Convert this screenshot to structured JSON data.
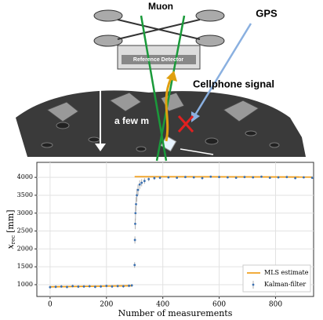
{
  "diagram": {
    "muon": "Muon",
    "gps": "GPS",
    "reference_detector": "Reference Detector",
    "cellphone_signal": "Cellphone signal",
    "depth": "a few m"
  },
  "chart_data": {
    "type": "scatter",
    "xlabel": "Number of measurements",
    "ylabel": [
      "x",
      "rec",
      "[mm]"
    ],
    "xlim": [
      -47,
      935
    ],
    "ylim": [
      670,
      4420
    ],
    "xticks": [
      0,
      200,
      400,
      600,
      800
    ],
    "yticks": [
      1000,
      1500,
      2000,
      2500,
      3000,
      3500,
      4000
    ],
    "grid": true,
    "legend": "lower right",
    "series": [
      {
        "name": "MLS estimate",
        "type": "line",
        "color": "#f0a020",
        "x": [
          0,
          290,
          295,
          300,
          930
        ],
        "values": [
          940,
          970,
          null,
          4020,
          4010
        ]
      },
      {
        "name": "Kalman-filter",
        "type": "errorbar",
        "color": "#3a6fb0",
        "error_color": "#b0b0b0",
        "x": [
          0,
          20,
          40,
          60,
          80,
          100,
          120,
          140,
          160,
          180,
          200,
          220,
          240,
          260,
          280,
          290,
          300,
          301,
          302,
          303,
          305,
          308,
          312,
          318,
          325,
          335,
          350,
          370,
          390,
          420,
          450,
          480,
          510,
          540,
          570,
          600,
          630,
          660,
          690,
          720,
          750,
          780,
          810,
          840,
          870,
          900,
          930
        ],
        "values": [
          930,
          940,
          950,
          935,
          960,
          945,
          950,
          955,
          940,
          950,
          965,
          950,
          960,
          955,
          970,
          980,
          1550,
          2250,
          2700,
          3000,
          3250,
          3500,
          3650,
          3800,
          3850,
          3900,
          3950,
          3980,
          3990,
          4000,
          3990,
          4010,
          4000,
          3980,
          4020,
          4010,
          4000,
          3990,
          4010,
          4000,
          4020,
          3990,
          4000,
          4010,
          3980,
          4000,
          3990
        ],
        "errors": [
          40,
          40,
          40,
          40,
          40,
          40,
          40,
          40,
          40,
          40,
          40,
          40,
          40,
          40,
          40,
          40,
          80,
          100,
          150,
          200,
          200,
          180,
          150,
          120,
          100,
          80,
          60,
          50,
          40,
          30,
          30,
          30,
          30,
          30,
          30,
          30,
          30,
          30,
          30,
          30,
          30,
          30,
          30,
          30,
          30,
          30,
          30
        ]
      }
    ]
  }
}
